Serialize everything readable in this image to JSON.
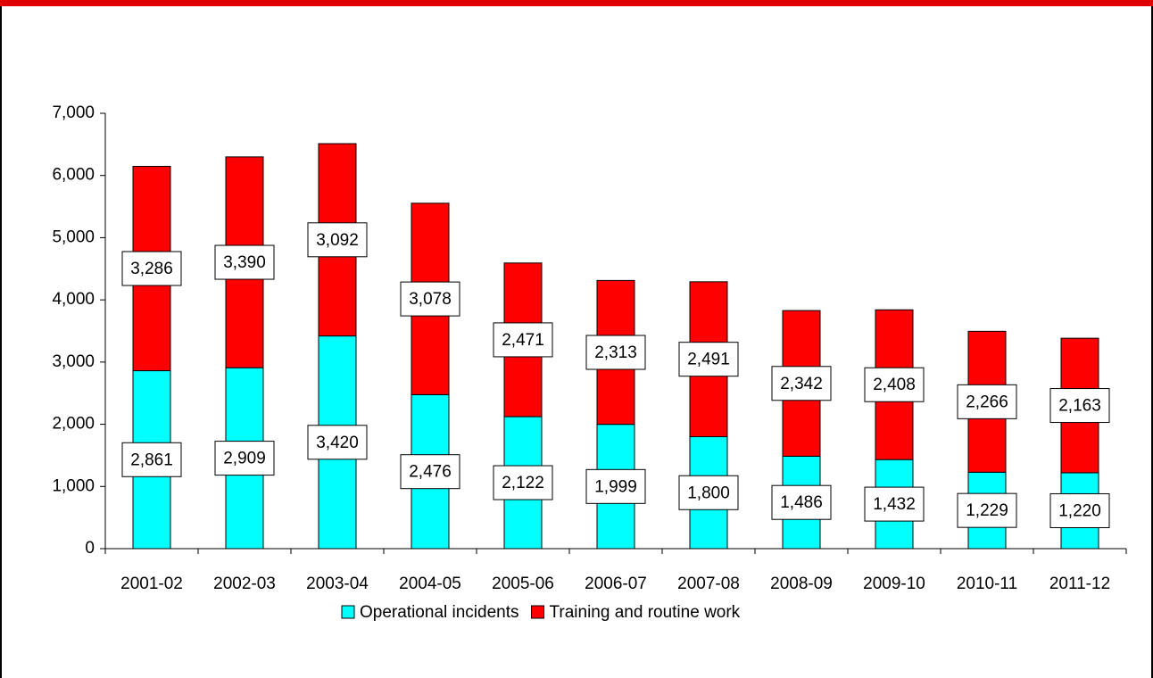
{
  "chart_data": {
    "type": "stacked_bar",
    "categories": [
      "2001-02",
      "2002-03",
      "2003-04",
      "2004-05",
      "2005-06",
      "2006-07",
      "2007-08",
      "2008-09",
      "2009-10",
      "2010-11",
      "2011-12"
    ],
    "series": [
      {
        "name": "Operational incidents",
        "color": "#00ffff",
        "values": [
          2861,
          2909,
          3420,
          2476,
          2122,
          1999,
          1800,
          1486,
          1432,
          1229,
          1220
        ],
        "value_labels": [
          "2,861",
          "2,909",
          "3,420",
          "2,476",
          "2,122",
          "1,999",
          "1,800",
          "1,486",
          "1,432",
          "1,229",
          "1,220"
        ]
      },
      {
        "name": "Training and routine work",
        "color": "#ff0000",
        "values": [
          3286,
          3390,
          3092,
          3078,
          2471,
          2313,
          2491,
          2342,
          2408,
          2266,
          2163
        ],
        "value_labels": [
          "3,286",
          "3,390",
          "3,092",
          "3,078",
          "2,471",
          "2,313",
          "2,491",
          "2,342",
          "2,408",
          "2,266",
          "2,163"
        ]
      }
    ],
    "ylim": [
      0,
      7000
    ],
    "yticks": [
      0,
      {
        "value": 1000,
        "label": "1,000"
      },
      {
        "value": 2000,
        "label": "2,000"
      },
      {
        "value": 3000,
        "label": "3,000"
      },
      {
        "value": 4000,
        "label": "4,000"
      },
      {
        "value": 5000,
        "label": "5,000"
      },
      {
        "value": 6000,
        "label": "6,000"
      },
      {
        "value": 7000,
        "label": "7,000"
      }
    ],
    "legend": "bottom"
  }
}
